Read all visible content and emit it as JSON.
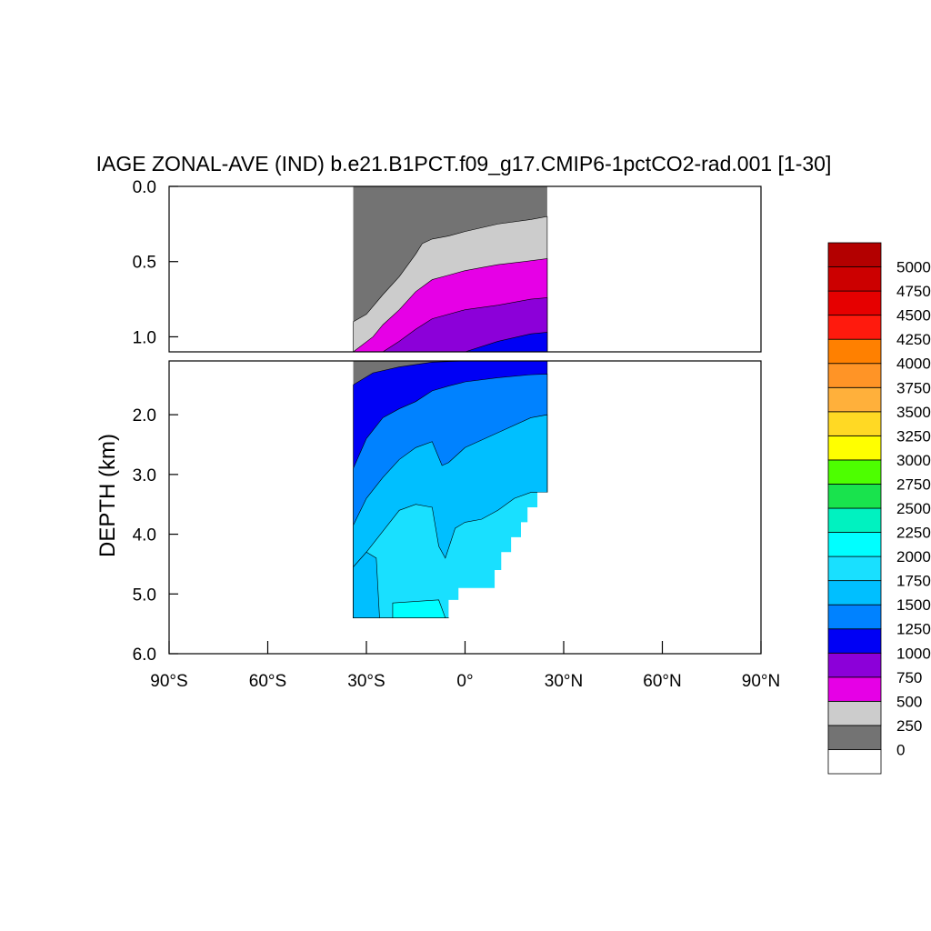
{
  "chart_data": {
    "type": "contour",
    "title": "IAGE ZONAL-AVE (IND) b.e21.B1PCT.f09_g17.CMIP6-1pctCO2-rad.001 [1-30]",
    "ylabel": "DEPTH (km)",
    "xlim": [
      -90,
      90
    ],
    "x_ticks": [
      {
        "value": -90,
        "label": "90°S"
      },
      {
        "value": -60,
        "label": "60°S"
      },
      {
        "value": -30,
        "label": "30°S"
      },
      {
        "value": 0,
        "label": "0°"
      },
      {
        "value": 30,
        "label": "30°N"
      },
      {
        "value": 60,
        "label": "60°N"
      },
      {
        "value": 90,
        "label": "90°N"
      }
    ],
    "upper_panel": {
      "ylim": [
        0.0,
        1.1
      ],
      "y_ticks": [
        "0.0",
        "0.5",
        "1.0"
      ],
      "y_values": [
        0.0,
        0.5,
        1.0
      ]
    },
    "lower_panel": {
      "ylim": [
        1.1,
        6.0
      ],
      "y_ticks": [
        "2.0",
        "3.0",
        "4.0",
        "5.0",
        "6.0"
      ],
      "y_values": [
        2.0,
        3.0,
        4.0,
        5.0,
        6.0
      ]
    },
    "data_extent": {
      "lat_min": -34,
      "lat_max": 25,
      "depth_max": 5.4
    },
    "levels": [
      0,
      250,
      500,
      750,
      1000,
      1250,
      1500,
      1750,
      2000,
      2250,
      2500,
      2750,
      3000,
      3250,
      3500,
      3750,
      4000,
      4250,
      4500,
      4750,
      5000
    ],
    "colorbar_labels": [
      "0",
      "250",
      "500",
      "750",
      "1000",
      "1250",
      "1500",
      "1750",
      "2000",
      "2250",
      "2500",
      "2750",
      "3000",
      "3250",
      "3500",
      "3750",
      "4000",
      "4250",
      "4500",
      "4750",
      "5000"
    ],
    "colors": [
      "#ffffff",
      "#737373",
      "#cccccc",
      "#e600e6",
      "#8c00d9",
      "#0000f5",
      "#0082ff",
      "#00bfff",
      "#19e0ff",
      "#00ffff",
      "#00f2c0",
      "#19e34d",
      "#4dff00",
      "#ffff00",
      "#ffd924",
      "#ffb03b",
      "#ff9426",
      "#ff8000",
      "#ff1a0d",
      "#e60000",
      "#cc0000",
      "#b30000"
    ],
    "contours_upper": [
      {
        "level": 250,
        "pts": [
          [
            -34,
            0.9
          ],
          [
            -30,
            0.85
          ],
          [
            -25,
            0.72
          ],
          [
            -20,
            0.6
          ],
          [
            -15,
            0.45
          ],
          [
            -13,
            0.38
          ],
          [
            -10,
            0.35
          ],
          [
            -5,
            0.33
          ],
          [
            0,
            0.3
          ],
          [
            10,
            0.25
          ],
          [
            20,
            0.22
          ],
          [
            25,
            0.2
          ]
        ]
      },
      {
        "level": 500,
        "pts": [
          [
            -34,
            1.1
          ],
          [
            -28,
            1.0
          ],
          [
            -25,
            0.92
          ],
          [
            -20,
            0.82
          ],
          [
            -15,
            0.7
          ],
          [
            -10,
            0.62
          ],
          [
            -5,
            0.59
          ],
          [
            0,
            0.56
          ],
          [
            5,
            0.54
          ],
          [
            10,
            0.52
          ],
          [
            18,
            0.5
          ],
          [
            25,
            0.48
          ]
        ]
      },
      {
        "level": 750,
        "pts": [
          [
            -34,
            1.25
          ],
          [
            -25,
            1.1
          ],
          [
            -20,
            1.03
          ],
          [
            -15,
            0.95
          ],
          [
            -10,
            0.88
          ],
          [
            0,
            0.82
          ],
          [
            10,
            0.79
          ],
          [
            20,
            0.75
          ],
          [
            25,
            0.74
          ]
        ]
      },
      {
        "level": 1000,
        "pts": [
          [
            -34,
            1.4
          ],
          [
            -20,
            1.2
          ],
          [
            -10,
            1.12
          ],
          [
            0,
            1.1
          ],
          [
            10,
            1.03
          ],
          [
            20,
            0.98
          ],
          [
            25,
            0.97
          ]
        ]
      }
    ],
    "contours_lower": [
      {
        "level": 1000,
        "pts": [
          [
            -34,
            1.5
          ],
          [
            -28,
            1.3
          ],
          [
            -20,
            1.2
          ],
          [
            -10,
            1.12
          ],
          [
            0,
            1.1
          ],
          [
            10,
            1.03
          ],
          [
            20,
            0.98
          ],
          [
            25,
            0.97
          ]
        ]
      },
      {
        "level": 1250,
        "pts": [
          [
            -34,
            2.9
          ],
          [
            -30,
            2.4
          ],
          [
            -25,
            2.05
          ],
          [
            -20,
            1.9
          ],
          [
            -15,
            1.78
          ],
          [
            -10,
            1.6
          ],
          [
            -5,
            1.52
          ],
          [
            0,
            1.45
          ],
          [
            10,
            1.38
          ],
          [
            20,
            1.33
          ],
          [
            25,
            1.32
          ]
        ]
      },
      {
        "level": 1500,
        "pts": [
          [
            -34,
            3.85
          ],
          [
            -30,
            3.4
          ],
          [
            -25,
            3.05
          ],
          [
            -20,
            2.75
          ],
          [
            -15,
            2.55
          ],
          [
            -10,
            2.45
          ],
          [
            -7,
            2.85
          ],
          [
            -5,
            2.8
          ],
          [
            0,
            2.55
          ],
          [
            10,
            2.3
          ],
          [
            20,
            2.05
          ],
          [
            25,
            2.0
          ]
        ]
      },
      {
        "level": 1750,
        "pts": [
          [
            -34,
            4.55
          ],
          [
            -30,
            4.3
          ],
          [
            -25,
            3.95
          ],
          [
            -20,
            3.6
          ],
          [
            -15,
            3.5
          ],
          [
            -10,
            3.55
          ],
          [
            -8,
            4.2
          ],
          [
            -6,
            4.4
          ],
          [
            -3,
            3.9
          ],
          [
            0,
            3.8
          ],
          [
            5,
            3.75
          ],
          [
            10,
            3.6
          ],
          [
            15,
            3.4
          ],
          [
            20,
            3.3
          ],
          [
            25,
            3.3
          ]
        ]
      }
    ]
  }
}
